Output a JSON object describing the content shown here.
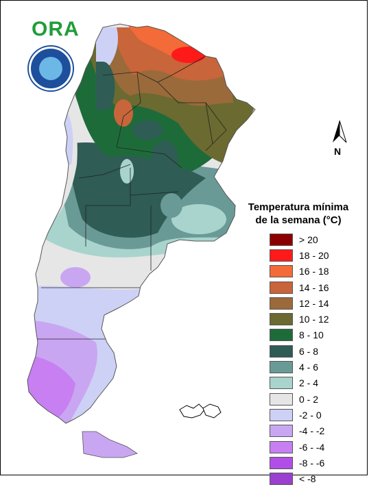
{
  "logo": {
    "text": "ORA"
  },
  "north_arrow": {
    "label": "N"
  },
  "legend": {
    "title_line1": "Temperatura mínima",
    "title_line2": "de la semana (°C)",
    "items": [
      {
        "label": "> 20",
        "color": "#8b0000"
      },
      {
        "label": "18 - 20",
        "color": "#ff1a1a"
      },
      {
        "label": "16 - 18",
        "color": "#f26b38"
      },
      {
        "label": "14 - 16",
        "color": "#c8653a"
      },
      {
        "label": "12 - 14",
        "color": "#9b6a3a"
      },
      {
        "label": "10 - 12",
        "color": "#6b6a30"
      },
      {
        "label": "8 - 10",
        "color": "#1e6b3a"
      },
      {
        "label": "6 - 8",
        "color": "#2f5c55"
      },
      {
        "label": "4 - 6",
        "color": "#6a9a96"
      },
      {
        "label": "2 - 4",
        "color": "#a8d4cd"
      },
      {
        "label": "0 - 2",
        "color": "#e6e6e6"
      },
      {
        "label": "-2 - 0",
        "color": "#cdd1f5"
      },
      {
        "label": "-4 - -2",
        "color": "#c9a6f2"
      },
      {
        "label": "-6 - -4",
        "color": "#c77ff2"
      },
      {
        "label": "-8 - -6",
        "color": "#b24ee8"
      },
      {
        "label": "< -8",
        "color": "#9a3fd0"
      }
    ]
  }
}
